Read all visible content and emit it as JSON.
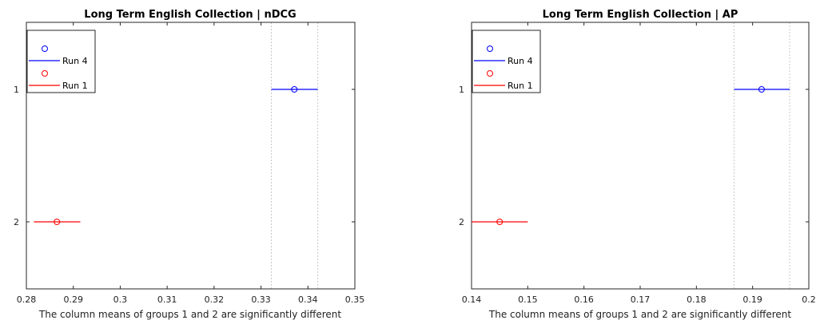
{
  "chart_data": [
    {
      "type": "scatter",
      "title": "Long Term English Collection | nDCG",
      "xlabel": "The column means of groups 1 and 2 are significantly different",
      "ylabel": "",
      "xlim": [
        0.28,
        0.35
      ],
      "xticks": [
        "0.28",
        "0.29",
        "0.3",
        "0.31",
        "0.32",
        "0.33",
        "0.34",
        "0.35"
      ],
      "yticks": [
        "1",
        "2"
      ],
      "reference_lines": [
        0.3322,
        0.3421
      ],
      "series": [
        {
          "name": "Run 4",
          "group": "1",
          "mean": 0.3371,
          "low": 0.3322,
          "high": 0.3421,
          "color": "#0000ff"
        },
        {
          "name": "Run 1",
          "group": "2",
          "mean": 0.2865,
          "low": 0.2816,
          "high": 0.2915,
          "color": "#ff0000"
        }
      ],
      "legend": {
        "position": "top-left"
      },
      "grid": false
    },
    {
      "type": "scatter",
      "title": "Long Term English Collection | AP",
      "xlabel": "The column means of groups 1 and 2 are significantly different",
      "ylabel": "",
      "xlim": [
        0.14,
        0.2
      ],
      "xticks": [
        "0.14",
        "0.15",
        "0.16",
        "0.17",
        "0.18",
        "0.19",
        "0.2"
      ],
      "yticks": [
        "1",
        "2"
      ],
      "reference_lines": [
        0.1867,
        0.1966
      ],
      "series": [
        {
          "name": "Run 4",
          "group": "1",
          "mean": 0.1916,
          "low": 0.1867,
          "high": 0.1966,
          "color": "#0000ff"
        },
        {
          "name": "Run 1",
          "group": "2",
          "mean": 0.145,
          "low": 0.14,
          "high": 0.15,
          "color": "#ff0000"
        }
      ],
      "legend": {
        "position": "top-left"
      },
      "grid": false
    }
  ]
}
